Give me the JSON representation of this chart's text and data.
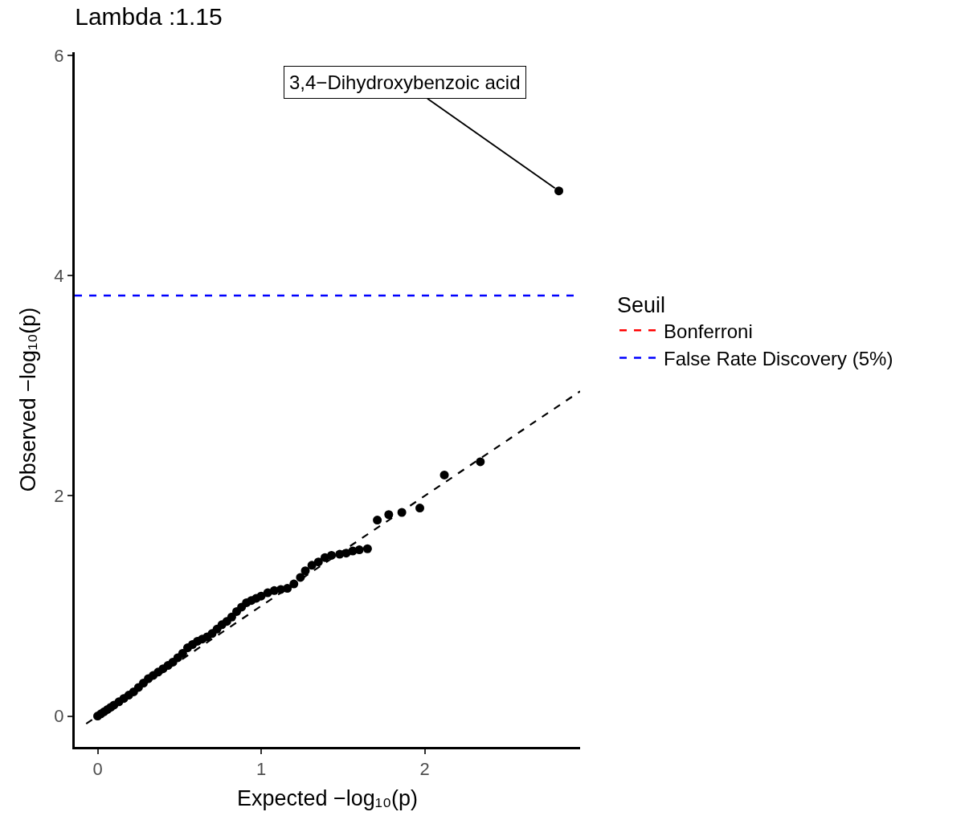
{
  "chart_data": {
    "type": "scatter",
    "title": "Lambda :1.15",
    "xlabel": "Expected −log₁₀(p)",
    "ylabel": "Observed −log₁₀(p)",
    "legend_title": "Seuil",
    "legend": "right",
    "marker": "circle",
    "xlim": [
      -0.14,
      2.95
    ],
    "ylim": [
      -0.28,
      6.03
    ],
    "xticks": [
      0,
      1,
      2
    ],
    "yticks": [
      0,
      2,
      4,
      6
    ],
    "series": [
      {
        "type": "line",
        "line_style": "dashed",
        "marker": "none",
        "color": "#000000",
        "x": [
          -0.07,
          2.95
        ],
        "values": [
          -0.07,
          2.95
        ]
      },
      {
        "color": "#000000",
        "x": [
          0,
          0.02,
          0.04,
          0.06,
          0.08,
          0.1,
          0.13,
          0.16,
          0.19,
          0.22,
          0.25,
          0.28,
          0.31,
          0.34,
          0.37,
          0.4,
          0.43,
          0.46,
          0.49,
          0.52,
          0.55,
          0.58,
          0.61,
          0.64,
          0.67,
          0.7,
          0.73,
          0.76,
          0.79,
          0.82,
          0.85,
          0.88,
          0.91,
          0.94,
          0.97,
          1.0,
          1.04,
          1.08,
          1.12,
          1.16,
          1.2,
          1.24,
          1.27,
          1.31,
          1.35,
          1.39,
          1.43,
          1.48,
          1.52,
          1.56,
          1.6,
          1.65,
          1.71,
          1.78,
          1.86,
          1.97,
          2.12,
          2.34,
          2.82
        ],
        "values": [
          0,
          0.02,
          0.04,
          0.06,
          0.08,
          0.1,
          0.13,
          0.16,
          0.19,
          0.22,
          0.26,
          0.3,
          0.34,
          0.37,
          0.4,
          0.43,
          0.46,
          0.49,
          0.53,
          0.57,
          0.62,
          0.65,
          0.68,
          0.7,
          0.72,
          0.75,
          0.79,
          0.83,
          0.86,
          0.9,
          0.95,
          0.99,
          1.03,
          1.05,
          1.07,
          1.09,
          1.12,
          1.14,
          1.15,
          1.16,
          1.2,
          1.26,
          1.32,
          1.37,
          1.4,
          1.44,
          1.46,
          1.47,
          1.48,
          1.5,
          1.51,
          1.52,
          1.78,
          1.83,
          1.85,
          1.89,
          2.19,
          2.31,
          4.77
        ]
      }
    ],
    "ref_lines": [
      {
        "axis": "y",
        "value": null,
        "label": "Bonferroni",
        "color": "#ff0000",
        "line_style": "dashed"
      },
      {
        "axis": "y",
        "value": 3.82,
        "label": "False Rate Discovery (5%)",
        "color": "#0000ff",
        "line_style": "dashed"
      }
    ],
    "annotations": [
      {
        "text": "3,4−Dihydroxybenzoic acid",
        "x": 2.82,
        "y": 4.77
      }
    ]
  }
}
